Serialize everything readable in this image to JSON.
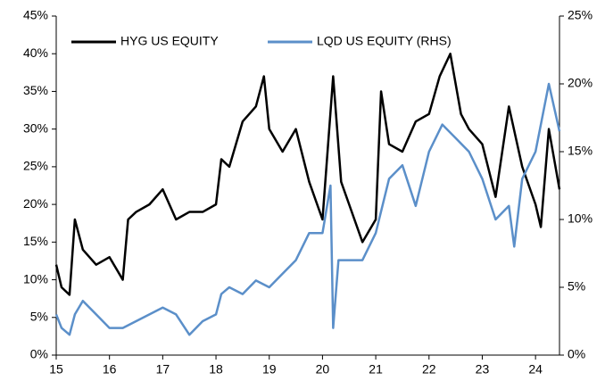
{
  "chart_data": {
    "type": "line",
    "xlim": [
      15,
      24.45
    ],
    "xticks": [
      15,
      16,
      17,
      18,
      19,
      20,
      21,
      22,
      23,
      24
    ],
    "ylim": [
      0,
      45
    ],
    "yticks": [
      {
        "value": 0,
        "label": "0%"
      },
      {
        "value": 5,
        "label": "5%"
      },
      {
        "value": 10,
        "label": "10%"
      },
      {
        "value": 15,
        "label": "15%"
      },
      {
        "value": 20,
        "label": "20%"
      },
      {
        "value": 25,
        "label": "25%"
      },
      {
        "value": 30,
        "label": "30%"
      },
      {
        "value": 35,
        "label": "35%"
      },
      {
        "value": 40,
        "label": "40%"
      },
      {
        "value": 45,
        "label": "45%"
      }
    ],
    "y2lim": [
      0,
      25
    ],
    "y2ticks": [
      {
        "value": 0,
        "label": "0%"
      },
      {
        "value": 5,
        "label": "5%"
      },
      {
        "value": 10,
        "label": "10%"
      },
      {
        "value": 15,
        "label": "15%"
      },
      {
        "value": 20,
        "label": "20%"
      },
      {
        "value": 25,
        "label": "25%"
      }
    ],
    "legend": "top-left",
    "series": [
      {
        "name": "HYG US EQUITY",
        "color": "#000000",
        "x": [
          15.0,
          15.1,
          15.25,
          15.35,
          15.5,
          15.75,
          16.0,
          16.25,
          16.35,
          16.5,
          16.75,
          17.0,
          17.25,
          17.5,
          17.75,
          18.0,
          18.1,
          18.25,
          18.5,
          18.75,
          18.9,
          19.0,
          19.25,
          19.5,
          19.75,
          20.0,
          20.2,
          20.35,
          20.5,
          20.75,
          21.0,
          21.1,
          21.25,
          21.5,
          21.75,
          22.0,
          22.2,
          22.4,
          22.6,
          22.75,
          23.0,
          23.25,
          23.5,
          23.75,
          24.0,
          24.1,
          24.25,
          24.45
        ],
        "values": [
          12,
          9,
          8,
          18,
          14,
          12,
          13,
          10,
          18,
          19,
          20,
          22,
          18,
          19,
          19,
          20,
          26,
          25,
          31,
          33,
          37,
          30,
          27,
          30,
          23,
          18,
          37,
          23,
          20,
          15,
          18,
          35,
          28,
          27,
          31,
          32,
          37,
          40,
          32,
          30,
          28,
          21,
          33,
          25,
          20,
          17,
          30,
          22
        ]
      },
      {
        "name": "LQD US EQUITY (RHS)",
        "color": "#5b8fc9",
        "axis": "y2",
        "x": [
          15.0,
          15.1,
          15.25,
          15.35,
          15.5,
          15.75,
          16.0,
          16.25,
          16.5,
          16.75,
          17.0,
          17.25,
          17.5,
          17.75,
          18.0,
          18.1,
          18.25,
          18.5,
          18.75,
          19.0,
          19.25,
          19.5,
          19.75,
          20.0,
          20.15,
          20.2,
          20.3,
          20.5,
          20.75,
          21.0,
          21.25,
          21.5,
          21.75,
          22.0,
          22.25,
          22.5,
          22.75,
          23.0,
          23.25,
          23.5,
          23.6,
          23.75,
          24.0,
          24.25,
          24.45
        ],
        "values": [
          3,
          2,
          1.5,
          3,
          4,
          3,
          2,
          2,
          2.5,
          3,
          3.5,
          3,
          1.5,
          2.5,
          3,
          4.5,
          5,
          4.5,
          5.5,
          5,
          6,
          7,
          9,
          9,
          12.5,
          2,
          7,
          7,
          7,
          9,
          13,
          14,
          11,
          15,
          17,
          16,
          15,
          13,
          10,
          11,
          8,
          13,
          15,
          20,
          16.5
        ]
      }
    ]
  }
}
